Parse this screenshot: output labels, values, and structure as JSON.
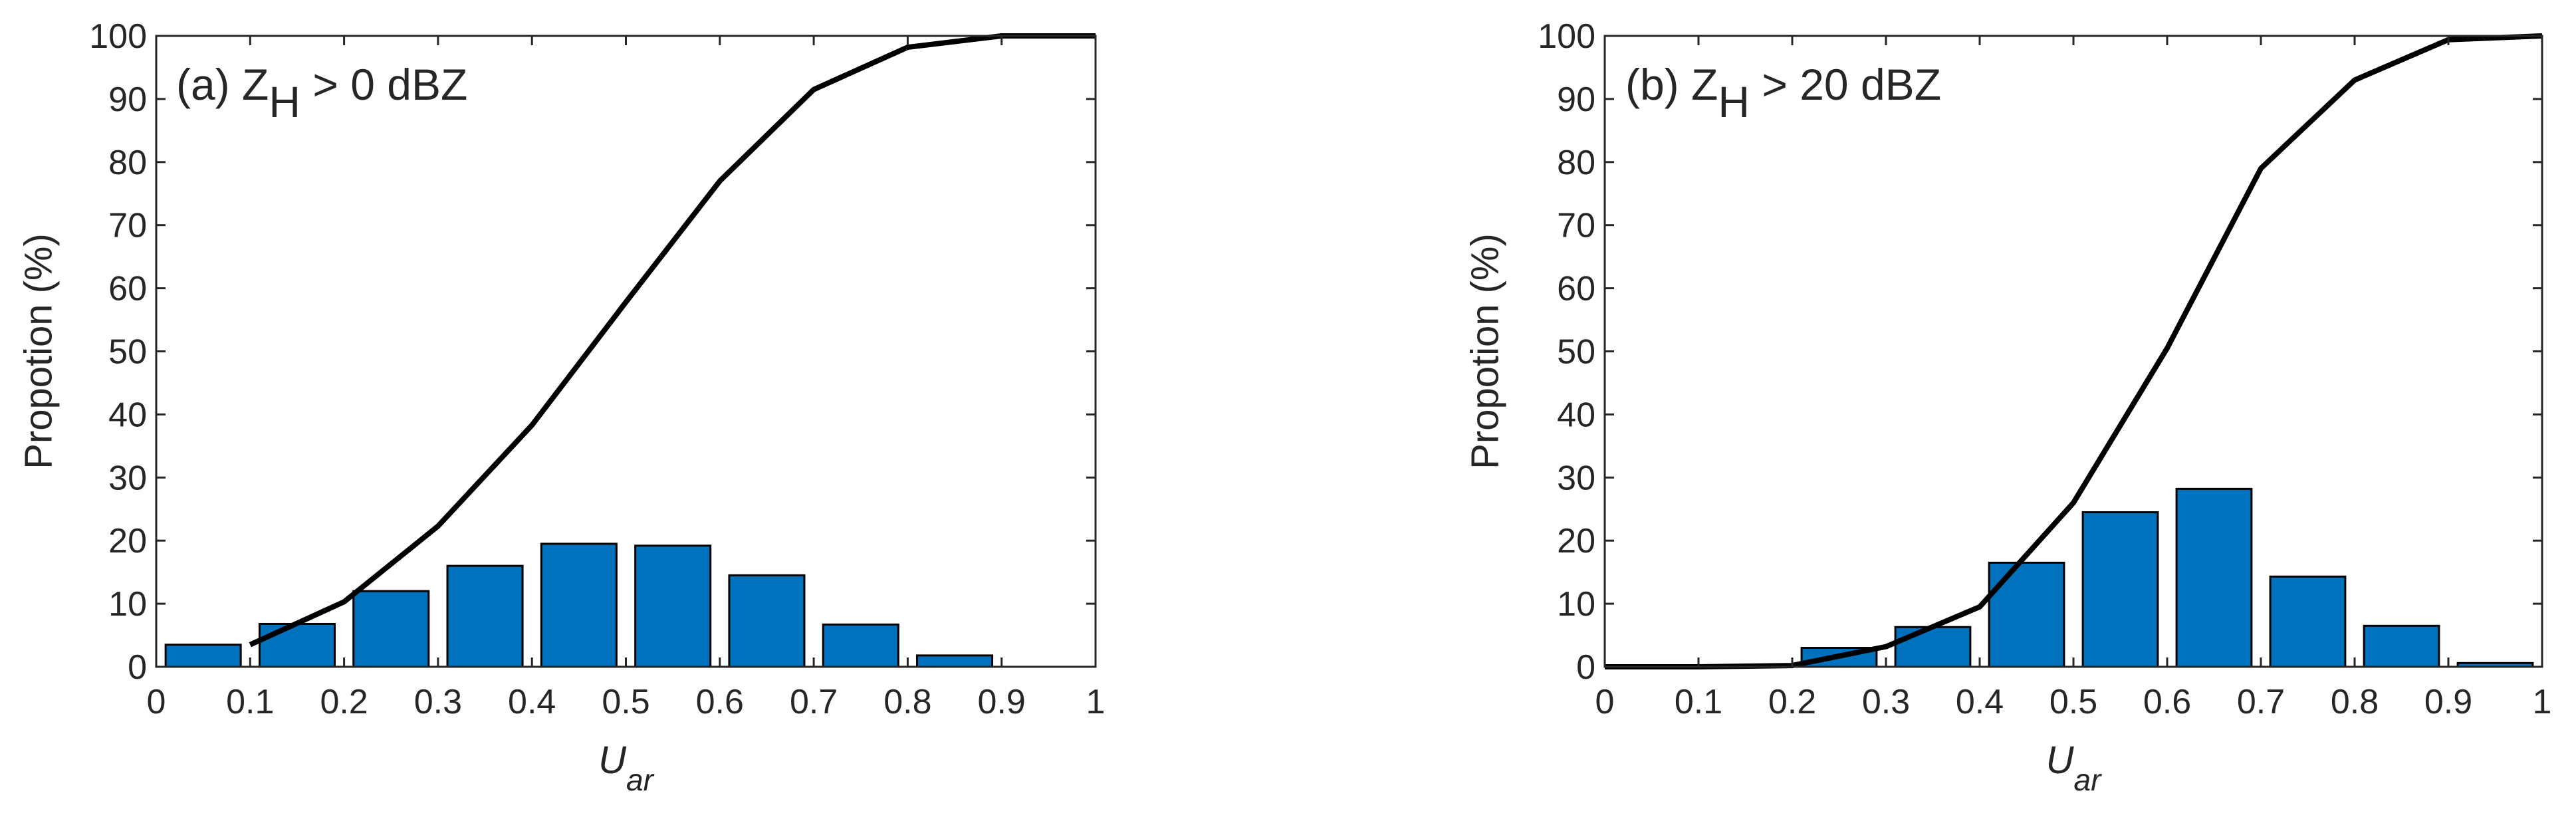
{
  "chart_data": [
    {
      "type": "histogram",
      "annotation": {
        "text": "(a) Z",
        "subscript": "H",
        "suffix": " > 0 dBZ"
      },
      "x_label": {
        "text": "U",
        "subscript": "ar"
      },
      "y_label": "Propotion (%)",
      "bins": [
        0,
        0.1,
        0.2,
        0.3,
        0.4,
        0.5,
        0.6,
        0.7,
        0.8,
        0.9,
        1
      ],
      "counts": [
        3.5,
        6.8,
        12,
        16,
        19.5,
        19.2,
        14.5,
        6.7,
        1.8,
        0
      ],
      "color": "#0072bd",
      "cumulative": {
        "x": [
          0.1,
          0.2,
          0.3,
          0.4,
          0.5,
          0.6,
          0.7,
          0.8,
          0.9,
          1
        ],
        "values": [
          3.5,
          10.3,
          22.3,
          38.3,
          57.8,
          77,
          91.5,
          98.2,
          100,
          100
        ],
        "color": "#000000"
      },
      "xlim": [
        0,
        1
      ],
      "xticks": [
        0,
        0.1,
        0.2,
        0.3,
        0.4,
        0.5,
        0.6,
        0.7,
        0.8,
        0.9,
        1
      ],
      "ylim": [
        0,
        100
      ],
      "yticks": [
        0,
        10,
        20,
        30,
        40,
        50,
        60,
        70,
        80,
        90,
        100
      ]
    },
    {
      "type": "histogram",
      "annotation": {
        "text": "(b) Z",
        "subscript": "H",
        "suffix": " > 20 dBZ"
      },
      "x_label": {
        "text": "U",
        "subscript": "ar"
      },
      "y_label": "Propotion (%)",
      "bins": [
        0,
        0.1,
        0.2,
        0.3,
        0.4,
        0.5,
        0.6,
        0.7,
        0.8,
        0.9,
        1
      ],
      "counts": [
        0,
        0.2,
        3,
        6.3,
        16.5,
        24.5,
        28.2,
        14.3,
        6.5,
        0.6
      ],
      "color": "#0072bd",
      "cumulative": {
        "x": [
          0,
          0.1,
          0.2,
          0.3,
          0.4,
          0.5,
          0.6,
          0.7,
          0.8,
          0.9,
          1
        ],
        "values": [
          0,
          0,
          0.2,
          3.2,
          9.5,
          26,
          50.5,
          79,
          93,
          99.4,
          100
        ],
        "color": "#000000"
      },
      "xlim": [
        0,
        1
      ],
      "xticks": [
        0,
        0.1,
        0.2,
        0.3,
        0.4,
        0.5,
        0.6,
        0.7,
        0.8,
        0.9,
        1
      ],
      "ylim": [
        0,
        100
      ],
      "yticks": [
        0,
        10,
        20,
        30,
        40,
        50,
        60,
        70,
        80,
        90,
        100
      ]
    }
  ]
}
